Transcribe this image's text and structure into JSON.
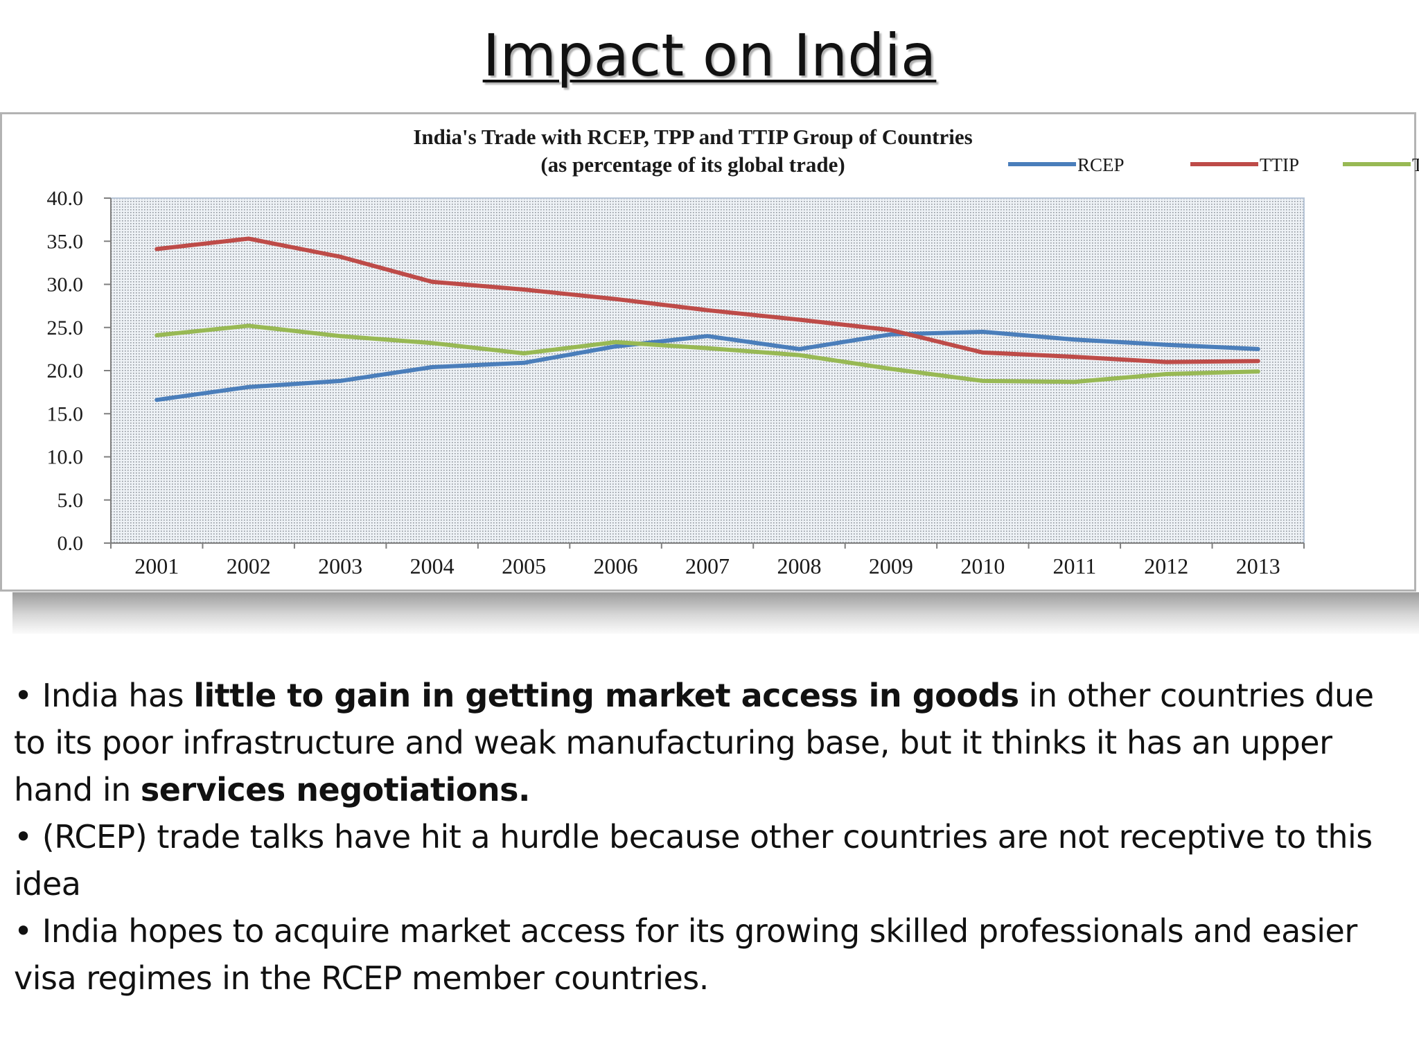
{
  "slide": {
    "title": "Impact on India"
  },
  "chart_data": {
    "type": "line",
    "title": "India's Trade with RCEP, TPP and TTIP Group of Countries",
    "subtitle": "(as percentage of its global trade)",
    "x": [
      "2001",
      "2002",
      "2003",
      "2004",
      "2005",
      "2006",
      "2007",
      "2008",
      "2009",
      "2010",
      "2011",
      "2012",
      "2013"
    ],
    "ylim": [
      0,
      40
    ],
    "yticks": [
      "0.0",
      "5.0",
      "10.0",
      "15.0",
      "20.0",
      "25.0",
      "30.0",
      "35.0",
      "40.0"
    ],
    "legend_position": "top-right",
    "grid": false,
    "series": [
      {
        "name": "RCEP",
        "color": "#4a7ebb",
        "values": [
          16.6,
          18.1,
          18.8,
          20.4,
          20.9,
          22.8,
          24.0,
          22.5,
          24.2,
          24.5,
          23.6,
          23.0,
          22.5
        ]
      },
      {
        "name": "TTIP",
        "color": "#be4b48",
        "values": [
          34.1,
          35.3,
          33.2,
          30.3,
          29.4,
          28.3,
          27.0,
          25.9,
          24.7,
          22.1,
          21.6,
          21.0,
          21.1
        ]
      },
      {
        "name": "TPP",
        "color": "#98b954",
        "values": [
          24.1,
          25.2,
          24.0,
          23.2,
          22.0,
          23.3,
          22.6,
          21.8,
          20.2,
          18.8,
          18.7,
          19.6,
          19.9
        ]
      }
    ]
  },
  "bullets": [
    {
      "parts": [
        {
          "text": "• India has ",
          "bold": false
        },
        {
          "text": "little to gain in getting market access in goods",
          "bold": true
        },
        {
          "text": " in other countries due to its poor infrastructure and weak manufacturing base, but it thinks it has an upper hand in ",
          "bold": false
        },
        {
          "text": "services negotiations.",
          "bold": true
        }
      ]
    },
    {
      "parts": [
        {
          "text": "• (RCEP) trade talks have hit a hurdle because other countries are not receptive to this idea",
          "bold": false
        }
      ]
    },
    {
      "parts": [
        {
          "text": "• India hopes to acquire market access for its growing skilled professionals and easier visa regimes in the RCEP member countries.",
          "bold": false
        }
      ]
    }
  ]
}
